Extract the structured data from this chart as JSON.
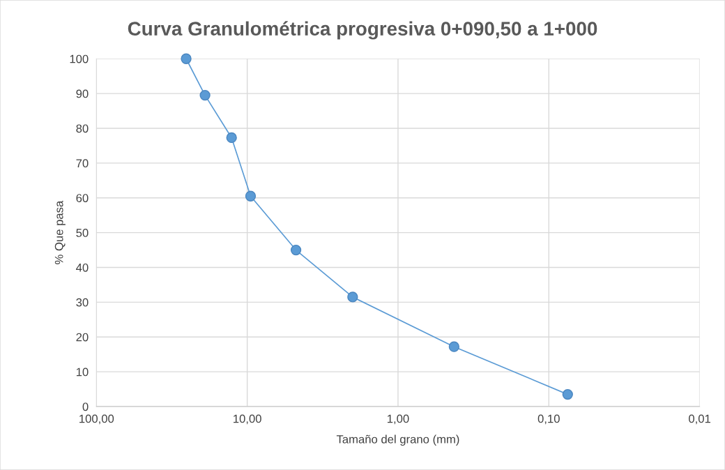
{
  "chart_data": {
    "type": "line",
    "title": "Curva Granulométrica progresiva 0+090,50 a 1+000",
    "xlabel": "Tamaño del grano (mm)",
    "ylabel": "% Que pasa",
    "log": "x",
    "xlim": [
      100,
      0.01
    ],
    "xticks": [
      {
        "value": 100,
        "label": "100,00"
      },
      {
        "value": 10,
        "label": "10,00"
      },
      {
        "value": 1,
        "label": "1,00"
      },
      {
        "value": 0.1,
        "label": "0,10"
      },
      {
        "value": 0.01,
        "label": "0,01"
      }
    ],
    "ylim": [
      0,
      100
    ],
    "yticks": [
      0,
      10,
      20,
      30,
      40,
      50,
      60,
      70,
      80,
      90,
      100
    ],
    "x": [
      25.4,
      19.05,
      12.7,
      9.5,
      4.75,
      2.0,
      0.425,
      0.075
    ],
    "series": [
      {
        "color": "#5b9bd5",
        "values": [
          100,
          89.5,
          77.3,
          60.5,
          45,
          31.5,
          17.2,
          3.5
        ]
      }
    ],
    "grid": true,
    "marker": "circle",
    "line_style": "solid"
  }
}
